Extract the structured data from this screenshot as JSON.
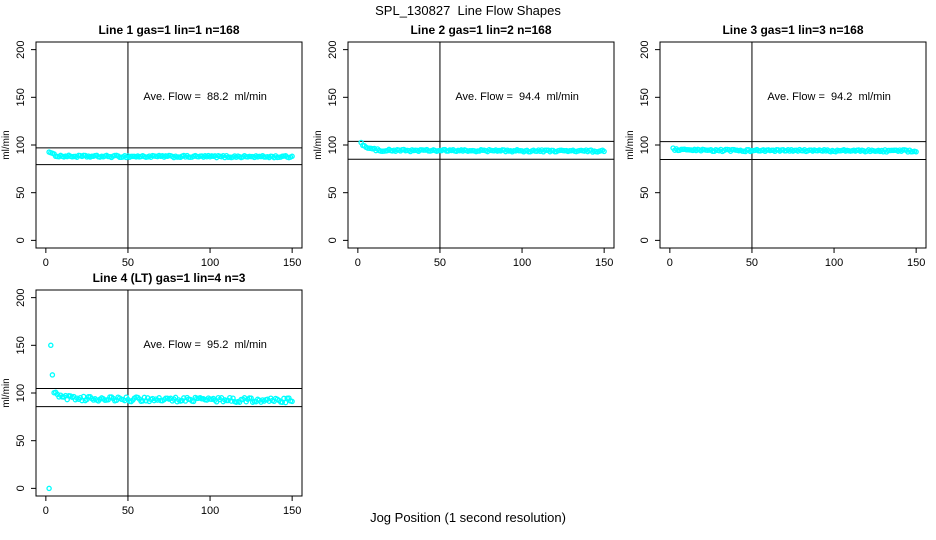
{
  "page": {
    "title": "SPL_130827  Line Flow Shapes",
    "xlabel": "Jog Position (1 second resolution)"
  },
  "chart_data": {
    "type": "scatter",
    "point_color": "#00FFFF",
    "line_color": "#000000",
    "ylabel": "ml/min",
    "x_ticks": [
      0,
      50,
      100,
      150
    ],
    "y_ticks": [
      0,
      50,
      100,
      150,
      200
    ],
    "xlim": [
      -6,
      156
    ],
    "ylim": [
      -8,
      208
    ],
    "vline_x": 50,
    "annotation_pos": {
      "x": 97,
      "y": 147
    },
    "panels": [
      {
        "id": "line-1",
        "title": "Line 1 gas=1 lin=1 n=168",
        "annotation": "Ave. Flow =  88.2  ml/min",
        "avg_flow": 88.2,
        "hlines": [
          97.0,
          79.4
        ],
        "grid": {
          "row": 0,
          "col": 0
        },
        "band": {
          "x_start": 2,
          "x_end": 150,
          "x_step": 1,
          "noise": 1.1,
          "anchors": [
            [
              2,
              93.5
            ],
            [
              3,
              91.5
            ],
            [
              5,
              89.5
            ],
            [
              8,
              88.5
            ],
            [
              15,
              88.1
            ],
            [
              150,
              87.7
            ]
          ]
        },
        "extra_points": []
      },
      {
        "id": "line-2",
        "title": "Line 2 gas=1 lin=2 n=168",
        "annotation": "Ave. Flow =  94.4  ml/min",
        "avg_flow": 94.4,
        "hlines": [
          103.8,
          85.0
        ],
        "grid": {
          "row": 0,
          "col": 1
        },
        "band": {
          "x_start": 2,
          "x_end": 150,
          "x_step": 1,
          "noise": 1.1,
          "anchors": [
            [
              2,
              103
            ],
            [
              3,
              100.5
            ],
            [
              5,
              97.5
            ],
            [
              8,
              95.8
            ],
            [
              12,
              94.8
            ],
            [
              20,
              94.3
            ],
            [
              150,
              93.6
            ]
          ]
        },
        "extra_points": []
      },
      {
        "id": "line-3",
        "title": "Line 3 gas=1 lin=3 n=168",
        "annotation": "Ave. Flow =  94.2  ml/min",
        "avg_flow": 94.2,
        "hlines": [
          103.6,
          84.8
        ],
        "grid": {
          "row": 0,
          "col": 2
        },
        "band": {
          "x_start": 2,
          "x_end": 150,
          "x_step": 1,
          "noise": 1.1,
          "anchors": [
            [
              2,
              96
            ],
            [
              4,
              95
            ],
            [
              10,
              94.4
            ],
            [
              150,
              93.8
            ]
          ]
        },
        "extra_points": []
      },
      {
        "id": "line-4",
        "title": "Line 4 (LT) gas=1 lin=4 n=3",
        "annotation": "Ave. Flow =  95.2  ml/min",
        "avg_flow": 95.2,
        "hlines": [
          104.7,
          85.7
        ],
        "grid": {
          "row": 1,
          "col": 0
        },
        "band": {
          "x_start": 5,
          "x_end": 150,
          "x_step": 1,
          "noise": 2.4,
          "anchors": [
            [
              5,
              101
            ],
            [
              6,
              99
            ],
            [
              8,
              97.2
            ],
            [
              12,
              95.5
            ],
            [
              20,
              94.3
            ],
            [
              40,
              93.5
            ],
            [
              80,
              93.2
            ],
            [
              150,
              92.3
            ]
          ]
        },
        "extra_points": [
          [
            2,
            0
          ],
          [
            3,
            150
          ],
          [
            4,
            119
          ]
        ]
      }
    ]
  }
}
